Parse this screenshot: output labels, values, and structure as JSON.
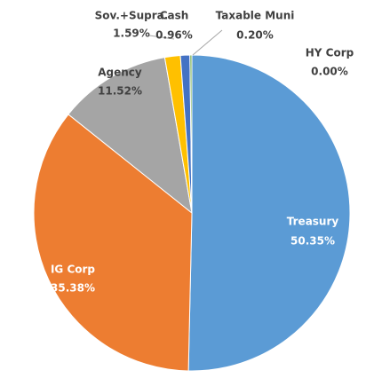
{
  "chart_data": {
    "type": "pie",
    "categories": [
      "Treasury",
      "IG Corp",
      "Agency",
      "Sov.+Supra.",
      "Cash",
      "Taxable Muni",
      "HY Corp"
    ],
    "values": [
      50.35,
      35.38,
      11.52,
      1.59,
      0.96,
      0.2,
      0.0
    ],
    "value_labels": [
      "50.35%",
      "35.38%",
      "11.52%",
      "1.59%",
      "0.96%",
      "0.20%",
      "0.00%"
    ],
    "colors": [
      "#5b9bd5",
      "#ed7d31",
      "#a5a5a5",
      "#ffc000",
      "#4472c4",
      "#70ad47",
      "#255e91"
    ]
  }
}
